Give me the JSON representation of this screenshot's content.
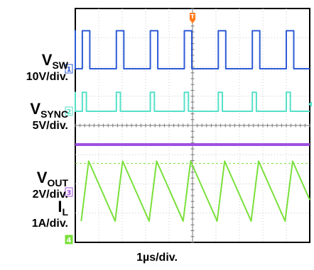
{
  "chart_data": {
    "type": "line",
    "title": "",
    "timebase": "1µs/div.",
    "divisions": {
      "x": 10,
      "y": 8
    },
    "grid": true,
    "trigger_marker": "T",
    "channels": [
      {
        "number": "1",
        "main": "V",
        "sub": "SW",
        "scale": "10V/div.",
        "color": "#2d5bd8",
        "waveform": "square",
        "period_div": 1.45,
        "duty": 0.22,
        "high_div": 1.3
      },
      {
        "number": "2",
        "main": "V",
        "sub": "SYNC",
        "scale": "5V/div.",
        "color": "#55e0c8",
        "waveform": "pulse",
        "period_div": 1.45,
        "duty": 0.12,
        "high_div": 0.65
      },
      {
        "number": "3",
        "main": "V",
        "sub": "OUT",
        "scale": "2V/div.",
        "color": "#a050e0",
        "waveform": "dc",
        "level_div": 4.4
      },
      {
        "number": "4",
        "main": "I",
        "sub": "L",
        "scale": "1A/div.",
        "color": "#7ae03a",
        "waveform": "sawtooth",
        "period_div": 1.45,
        "rise_frac": 0.22,
        "peak_div": 2.55,
        "min_div": 0.5
      }
    ]
  }
}
